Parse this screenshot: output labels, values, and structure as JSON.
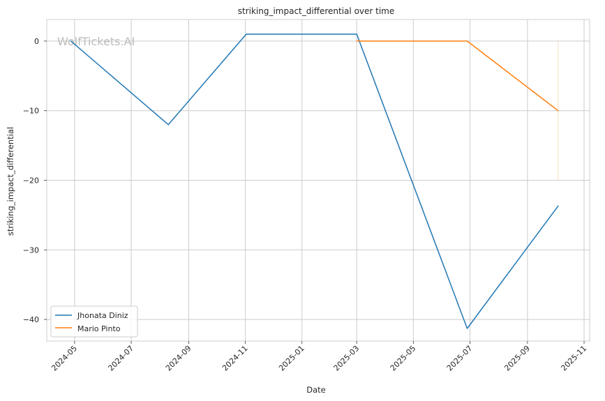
{
  "watermark": "WolfTickets.AI",
  "chart_data": {
    "type": "line",
    "title": "striking_impact_differential over time",
    "xlabel": "Date",
    "ylabel": "striking_impact_differential",
    "xlim": [
      "2024-04-01",
      "2025-11-07"
    ],
    "ylim": [
      -43.1,
      3.1
    ],
    "x_ticks": [
      "2024-05",
      "2024-07",
      "2024-09",
      "2024-11",
      "2025-01",
      "2025-03",
      "2025-05",
      "2025-07",
      "2025-09",
      "2025-11"
    ],
    "y_ticks": [
      0,
      -10,
      -20,
      -30,
      -40
    ],
    "y_tick_labels": [
      "0",
      "−10",
      "−20",
      "−30",
      "−40"
    ],
    "grid": true,
    "legend_position": "lower-left",
    "series": [
      {
        "name": "Jhonata Diniz",
        "color": "#1f77b4",
        "points": [
          {
            "x": "2024-04-27",
            "y": 0
          },
          {
            "x": "2024-08-10",
            "y": -12
          },
          {
            "x": "2024-11-02",
            "y": 1
          },
          {
            "x": "2025-03-01",
            "y": 1
          },
          {
            "x": "2025-06-28",
            "y": -41.3
          },
          {
            "x": "2025-10-04",
            "y": -23.7
          }
        ]
      },
      {
        "name": "Mario Pinto",
        "color": "#ff7f0e",
        "points": [
          {
            "x": "2025-03-01",
            "y": 0
          },
          {
            "x": "2025-06-28",
            "y": 0
          },
          {
            "x": "2025-10-04",
            "y": -10
          }
        ]
      }
    ],
    "annotations": [
      {
        "type": "vertical-band",
        "x": "2025-10-04",
        "y_range": [
          -20,
          0
        ],
        "color": "#ff7f0e"
      }
    ]
  }
}
